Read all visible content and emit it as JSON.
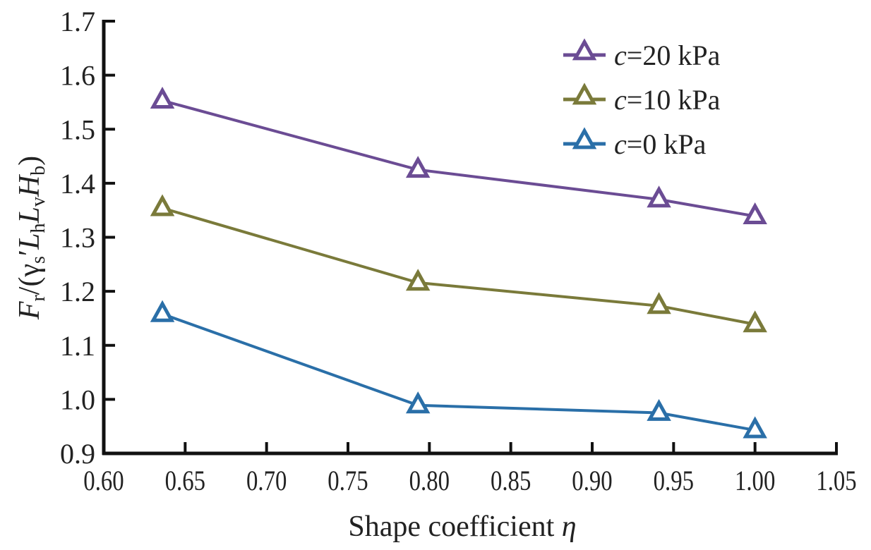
{
  "chart_data": {
    "type": "line",
    "title": "",
    "xlabel": "Shape coefficient",
    "xlabel_symbol": "η",
    "ylabel": {
      "F": "F",
      "r": "r",
      "mid": "/(γ",
      "s": "s",
      "prime": "′",
      "L1": "L",
      "h": "h",
      "L2": "L",
      "v": "v",
      "H": "H",
      "b": "b",
      "close": ")"
    },
    "ylabel_plain": "F_r/(γ_s′L_hL_vH_b)",
    "xlim": [
      0.6,
      1.05
    ],
    "ylim": [
      0.9,
      1.7
    ],
    "xticks": [
      "0.60",
      "0.65",
      "0.70",
      "0.75",
      "0.80",
      "0.85",
      "0.90",
      "0.95",
      "1.00",
      "1.05"
    ],
    "yticks": [
      "0.9",
      "1.0",
      "1.1",
      "1.2",
      "1.3",
      "1.4",
      "1.5",
      "1.6",
      "1.7"
    ],
    "x": [
      0.636,
      0.793,
      0.941,
      1.0
    ],
    "marker": "triangle-open",
    "legend_position": "top-right",
    "grid": false,
    "series": [
      {
        "name": "c=20 kPa",
        "c_label": "c",
        "rest": "=20 kPa",
        "color": "#6b4c94",
        "values": [
          1.553,
          1.425,
          1.37,
          1.339
        ]
      },
      {
        "name": "c=10 kPa",
        "c_label": "c",
        "rest": "=10 kPa",
        "color": "#7a7a3a",
        "values": [
          1.354,
          1.216,
          1.173,
          1.139
        ]
      },
      {
        "name": "c=0 kPa",
        "c_label": "c",
        "rest": "=0 kPa",
        "color": "#2a6fa8",
        "values": [
          1.158,
          0.989,
          0.975,
          0.943
        ]
      }
    ]
  }
}
